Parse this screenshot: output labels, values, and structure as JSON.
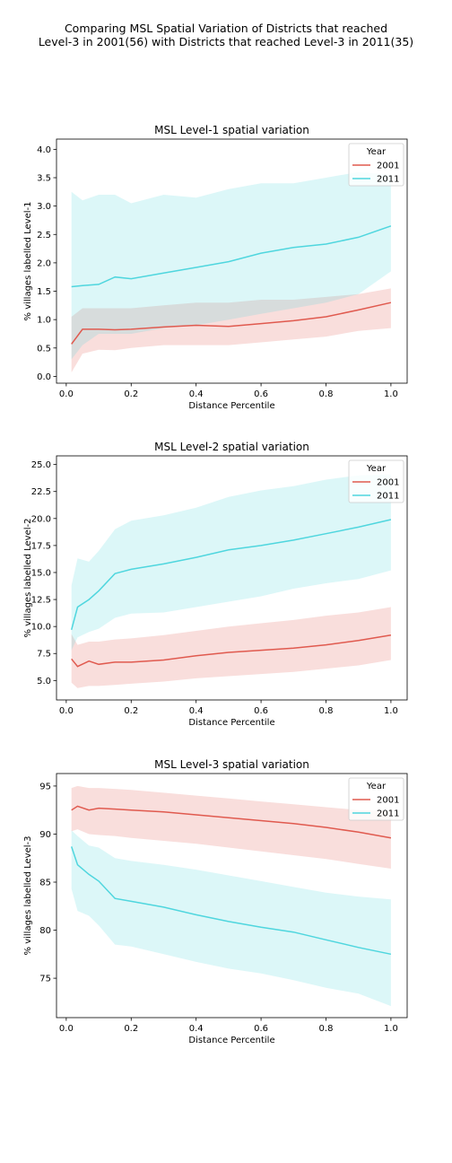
{
  "figure": {
    "suptitle_lines": [
      "Comparing MSL Spatial Variation of Districts that reached",
      "Level-3 in 2001(56) with Districts that reached Level-3 in 2011(35)"
    ]
  },
  "colors": {
    "2001": "#e05a4f",
    "2011": "#4fd6de"
  },
  "chart_data": [
    {
      "type": "line",
      "title": "MSL Level-1 spatial variation",
      "xlabel": "Distance Percentile",
      "ylabel": "% villages labelled Level-1",
      "xlim": [
        -0.03,
        1.05
      ],
      "ylim": [
        -0.12,
        4.18
      ],
      "xticks": [
        0.0,
        0.2,
        0.4,
        0.6,
        0.8,
        1.0
      ],
      "xtick_labels": [
        "0.0",
        "0.2",
        "0.4",
        "0.6",
        "0.8",
        "1.0"
      ],
      "yticks": [
        0.0,
        0.5,
        1.0,
        1.5,
        2.0,
        2.5,
        3.0,
        3.5,
        4.0
      ],
      "ytick_labels": [
        "0.0",
        "0.5",
        "1.0",
        "1.5",
        "2.0",
        "2.5",
        "3.0",
        "3.5",
        "4.0"
      ],
      "legend": {
        "title": "Year",
        "position": "top-right"
      },
      "series": [
        {
          "name": "2001",
          "x": [
            0.016,
            0.05,
            0.1,
            0.15,
            0.2,
            0.3,
            0.4,
            0.5,
            0.6,
            0.7,
            0.8,
            0.9,
            1.0
          ],
          "y": [
            0.57,
            0.83,
            0.83,
            0.82,
            0.83,
            0.87,
            0.9,
            0.88,
            0.93,
            0.98,
            1.05,
            1.17,
            1.3
          ],
          "lower": [
            0.07,
            0.4,
            0.47,
            0.46,
            0.5,
            0.55,
            0.55,
            0.55,
            0.6,
            0.65,
            0.7,
            0.8,
            0.85
          ],
          "upper": [
            1.05,
            1.2,
            1.2,
            1.2,
            1.2,
            1.25,
            1.3,
            1.3,
            1.35,
            1.35,
            1.4,
            1.45,
            1.55
          ]
        },
        {
          "name": "2011",
          "x": [
            0.016,
            0.05,
            0.1,
            0.15,
            0.2,
            0.3,
            0.4,
            0.5,
            0.6,
            0.7,
            0.8,
            0.9,
            1.0
          ],
          "y": [
            1.58,
            1.6,
            1.62,
            1.75,
            1.72,
            1.82,
            1.92,
            2.02,
            2.17,
            2.27,
            2.33,
            2.45,
            2.65
          ],
          "lower": [
            0.3,
            0.55,
            0.75,
            0.75,
            0.75,
            0.85,
            0.9,
            1.0,
            1.1,
            1.2,
            1.3,
            1.45,
            1.85
          ],
          "upper": [
            3.25,
            3.1,
            3.2,
            3.2,
            3.05,
            3.2,
            3.15,
            3.3,
            3.4,
            3.4,
            3.5,
            3.6,
            3.55
          ]
        }
      ]
    },
    {
      "type": "line",
      "title": "MSL Level-2 spatial variation",
      "xlabel": "Distance Percentile",
      "ylabel": "% villages labelled Level-2",
      "xlim": [
        -0.03,
        1.05
      ],
      "ylim": [
        3.2,
        25.8
      ],
      "xticks": [
        0.0,
        0.2,
        0.4,
        0.6,
        0.8,
        1.0
      ],
      "xtick_labels": [
        "0.0",
        "0.2",
        "0.4",
        "0.6",
        "0.8",
        "1.0"
      ],
      "yticks": [
        5.0,
        7.5,
        10.0,
        12.5,
        15.0,
        17.5,
        20.0,
        22.5,
        25.0
      ],
      "ytick_labels": [
        "5.0",
        "7.5",
        "10.0",
        "12.5",
        "15.0",
        "17.5",
        "20.0",
        "22.5",
        "25.0"
      ],
      "legend": {
        "title": "Year",
        "position": "top-right"
      },
      "series": [
        {
          "name": "2001",
          "x": [
            0.016,
            0.035,
            0.07,
            0.1,
            0.15,
            0.2,
            0.3,
            0.4,
            0.5,
            0.6,
            0.7,
            0.8,
            0.9,
            1.0
          ],
          "y": [
            7.0,
            6.3,
            6.8,
            6.5,
            6.7,
            6.7,
            6.9,
            7.3,
            7.6,
            7.8,
            8.0,
            8.3,
            8.7,
            9.2
          ],
          "lower": [
            4.8,
            4.3,
            4.5,
            4.5,
            4.6,
            4.7,
            4.9,
            5.2,
            5.4,
            5.6,
            5.8,
            6.1,
            6.4,
            6.9
          ],
          "upper": [
            9.3,
            8.3,
            8.6,
            8.6,
            8.8,
            8.9,
            9.2,
            9.6,
            10.0,
            10.3,
            10.6,
            11.0,
            11.3,
            11.8
          ]
        },
        {
          "name": "2011",
          "x": [
            0.016,
            0.035,
            0.07,
            0.1,
            0.15,
            0.2,
            0.3,
            0.4,
            0.5,
            0.6,
            0.7,
            0.8,
            0.9,
            1.0
          ],
          "y": [
            9.7,
            11.8,
            12.5,
            13.3,
            14.9,
            15.3,
            15.8,
            16.4,
            17.1,
            17.5,
            18.0,
            18.6,
            19.2,
            19.9
          ],
          "lower": [
            7.8,
            9.0,
            9.5,
            9.8,
            10.8,
            11.2,
            11.3,
            11.8,
            12.3,
            12.8,
            13.5,
            14.0,
            14.4,
            15.2
          ],
          "upper": [
            13.8,
            16.3,
            16.0,
            17.0,
            19.0,
            19.8,
            20.3,
            21.0,
            22.0,
            22.6,
            23.0,
            23.6,
            24.0,
            24.1
          ]
        }
      ]
    },
    {
      "type": "line",
      "title": "MSL Level-3 spatial variation",
      "xlabel": "Distance Percentile",
      "ylabel": "% villages labelled Level-3",
      "xlim": [
        -0.03,
        1.05
      ],
      "ylim": [
        70.9,
        96.3
      ],
      "xticks": [
        0.0,
        0.2,
        0.4,
        0.6,
        0.8,
        1.0
      ],
      "xtick_labels": [
        "0.0",
        "0.2",
        "0.4",
        "0.6",
        "0.8",
        "1.0"
      ],
      "yticks": [
        75,
        80,
        85,
        90,
        95
      ],
      "ytick_labels": [
        "75",
        "80",
        "85",
        "90",
        "95"
      ],
      "legend": {
        "title": "Year",
        "position": "top-right"
      },
      "series": [
        {
          "name": "2001",
          "x": [
            0.016,
            0.035,
            0.07,
            0.1,
            0.15,
            0.2,
            0.3,
            0.4,
            0.5,
            0.6,
            0.7,
            0.8,
            0.9,
            1.0
          ],
          "y": [
            92.5,
            92.9,
            92.5,
            92.7,
            92.6,
            92.5,
            92.3,
            92.0,
            91.7,
            91.4,
            91.1,
            90.7,
            90.2,
            89.6
          ],
          "lower": [
            90.3,
            90.5,
            90.0,
            89.9,
            89.8,
            89.6,
            89.3,
            89.0,
            88.6,
            88.2,
            87.8,
            87.4,
            86.9,
            86.4
          ],
          "upper": [
            94.8,
            95.0,
            94.8,
            94.8,
            94.7,
            94.6,
            94.3,
            94.0,
            93.7,
            93.4,
            93.1,
            92.8,
            92.5,
            92.4
          ]
        },
        {
          "name": "2011",
          "x": [
            0.016,
            0.035,
            0.07,
            0.1,
            0.15,
            0.2,
            0.3,
            0.4,
            0.5,
            0.6,
            0.7,
            0.8,
            0.9,
            1.0
          ],
          "y": [
            88.7,
            86.8,
            85.8,
            85.1,
            83.3,
            83.0,
            82.4,
            81.6,
            80.9,
            80.3,
            79.8,
            79.0,
            78.2,
            77.5
          ],
          "lower": [
            84.3,
            82.0,
            81.5,
            80.5,
            78.5,
            78.3,
            77.5,
            76.7,
            76.0,
            75.5,
            74.8,
            74.0,
            73.4,
            72.1
          ],
          "upper": [
            90.4,
            89.8,
            88.8,
            88.6,
            87.5,
            87.2,
            86.8,
            86.3,
            85.7,
            85.1,
            84.5,
            83.9,
            83.5,
            83.2
          ]
        }
      ]
    }
  ]
}
